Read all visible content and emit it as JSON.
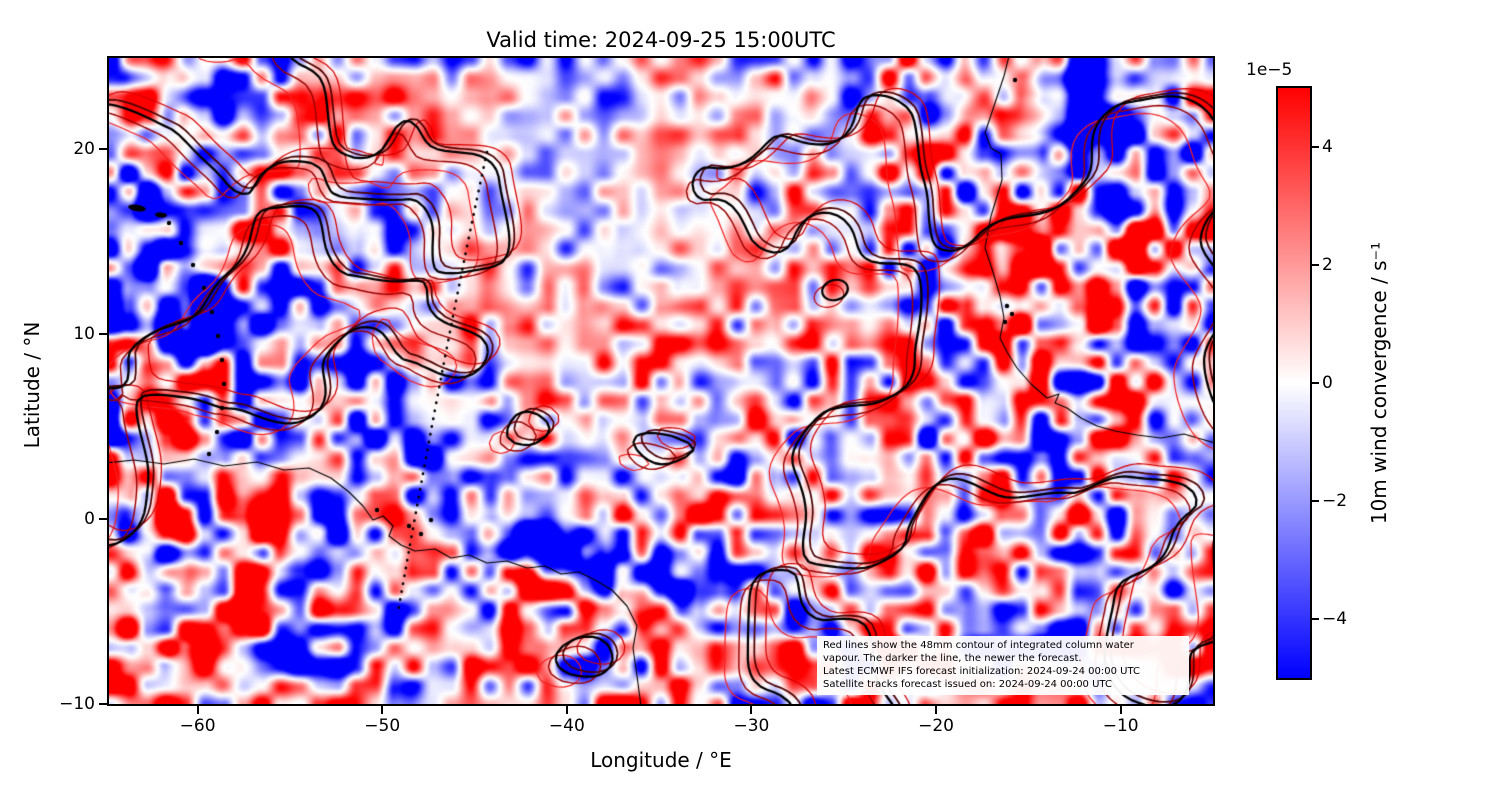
{
  "title": "Valid time: 2024-09-25 15:00UTC",
  "axes": {
    "xlabel": "Longitude / °E",
    "ylabel": "Latitude / °N",
    "x_ticks": [
      {
        "value": -60,
        "label": "−60"
      },
      {
        "value": -50,
        "label": "−50"
      },
      {
        "value": -40,
        "label": "−40"
      },
      {
        "value": -30,
        "label": "−30"
      },
      {
        "value": -20,
        "label": "−20"
      },
      {
        "value": -10,
        "label": "−10"
      }
    ],
    "y_ticks": [
      {
        "value": 20,
        "label": "20"
      },
      {
        "value": 10,
        "label": "10"
      },
      {
        "value": 0,
        "label": "0"
      },
      {
        "value": -10,
        "label": "−10"
      }
    ]
  },
  "colorbar": {
    "scale_label": "1e−5",
    "label": "10m wind convergence / s⁻¹",
    "ticks": [
      {
        "value": 4,
        "label": "4"
      },
      {
        "value": 2,
        "label": "2"
      },
      {
        "value": 0,
        "label": "0"
      },
      {
        "value": -2,
        "label": "−2"
      },
      {
        "value": -4,
        "label": "−4"
      }
    ],
    "vmin_display": -5,
    "vmax_display": 5,
    "top_color": "#ff0000",
    "mid_color": "#ffffff",
    "bottom_color": "#0000ff"
  },
  "annotation": {
    "lines": [
      "Red lines show the 48mm contour of integrated column water",
      "vapour. The darker the line, the newer the forecast.",
      "Latest ECMWF IFS forecast initialization: 2024-09-24 00:00 UTC",
      "Satellite tracks forecast issued on: 2024-09-24 00:00 UTC"
    ]
  },
  "chart_data": {
    "type": "heatmap",
    "title": "Valid time: 2024-09-25 15:00UTC",
    "xlabel": "Longitude / °E",
    "ylabel": "Latitude / °N",
    "xlim": [
      -64.8,
      -5.0
    ],
    "ylim": [
      -10,
      24.9
    ],
    "x_ticks": [
      -60,
      -50,
      -40,
      -30,
      -20,
      -10
    ],
    "y_ticks": [
      20,
      10,
      0,
      -10
    ],
    "grid": false,
    "field": {
      "variable": "10m wind convergence",
      "units": "s⁻¹",
      "vmin": -5e-05,
      "vmax": 5e-05,
      "colormap": "bwr (blue-white-red, white at 0)",
      "note": "High-frequency convergence/divergence cells over the tropical Atlantic; saturated red/blue patches near the South American and West African coasts, paler field in the central upper region; pattern approximated procedurally."
    },
    "valid_time": "2024-09-25 15:00UTC",
    "overlays": [
      {
        "name": "iwv-48mm-contours",
        "description": "48mm contour of integrated column water vapour from successive forecasts; darker line = newer forecast, newest drawn thick black",
        "colors": [
          "#f42020",
          "#d60000",
          "#9a0000",
          "#4c0000",
          "#000000"
        ]
      },
      {
        "name": "satellite-track",
        "description": "black dotted line from about (-38.5E, 19.9N) to (-49.2E, -5.0N)"
      },
      {
        "name": "coastlines",
        "description": "thin black coastlines: NE South America with Antilles arc and Amazon delta, West Africa with Gulf of Guinea"
      }
    ],
    "forecast_initialization": "2024-09-24 00:00 UTC",
    "satellite_tracks_issued": "2024-09-24 00:00 UTC"
  }
}
